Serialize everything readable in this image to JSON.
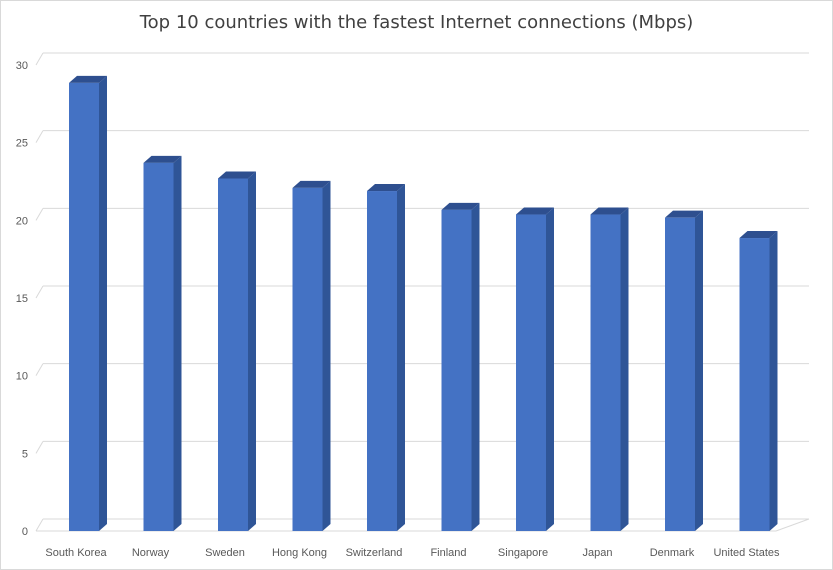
{
  "chart_data": {
    "type": "bar",
    "title": "Top 10 countries with the fastest Internet connections (Mbps)",
    "xlabel": "",
    "ylabel": "",
    "categories": [
      "South Korea",
      "Norway",
      "Sweden",
      "Hong Kong",
      "Switzerland",
      "Finland",
      "Singapore",
      "Japan",
      "Denmark",
      "United States"
    ],
    "values": [
      28.6,
      23.5,
      22.5,
      21.9,
      21.7,
      20.5,
      20.2,
      20.2,
      20.0,
      18.7
    ],
    "ylim": [
      0,
      30
    ],
    "yticks": [
      "0",
      "5",
      "10",
      "15",
      "20",
      "25",
      "30"
    ],
    "grid": true,
    "style": "3d-column",
    "colors": {
      "bar_front": "#4472c4",
      "bar_side": "#2f5597",
      "bar_top": "#2e4f8f",
      "grid": "#d9d9d9"
    }
  }
}
